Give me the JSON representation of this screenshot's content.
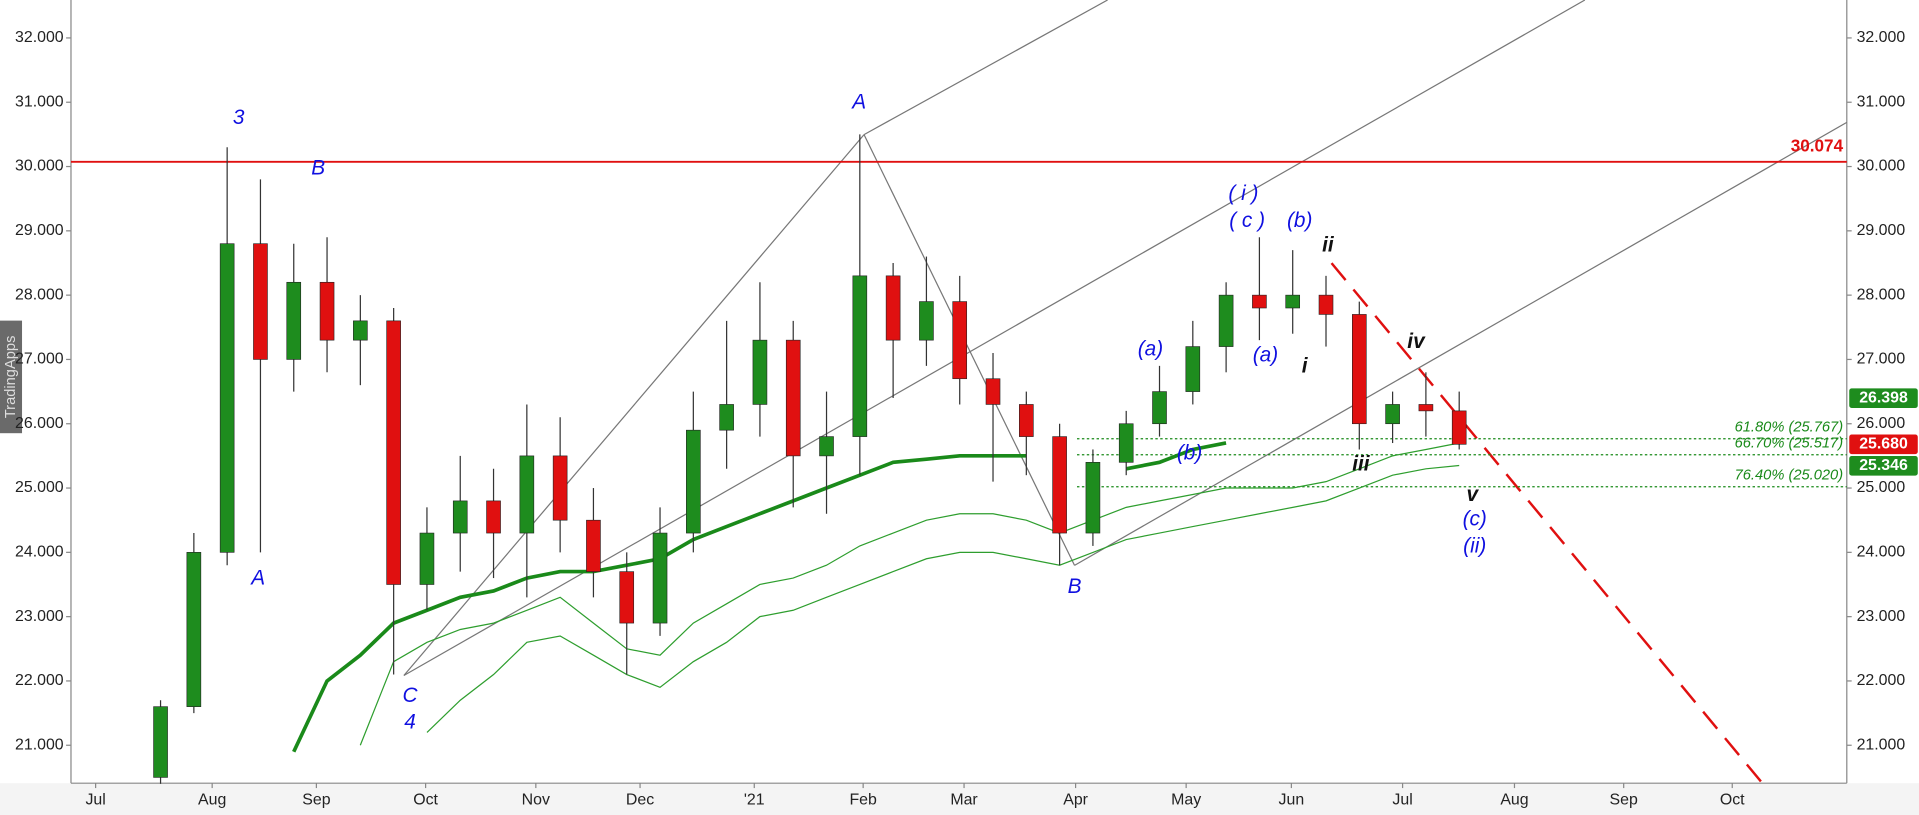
{
  "chart_data": {
    "type": "candlestick",
    "watermark": "TradingApps",
    "x": [
      0,
      1,
      2,
      3,
      4,
      5,
      6,
      7,
      8,
      9,
      10,
      11,
      12,
      13,
      14,
      15,
      16,
      17,
      18,
      19,
      20,
      21,
      22,
      23,
      24,
      25,
      26,
      27,
      28,
      29,
      30,
      31,
      32,
      33,
      34,
      35,
      36,
      37,
      38,
      39
    ],
    "open": [
      20500,
      21600,
      24000,
      28800,
      27000,
      28200,
      27300,
      27600,
      23500,
      24300,
      24800,
      24300,
      25500,
      24500,
      23700,
      22900,
      24300,
      25900,
      26300,
      27300,
      25500,
      25800,
      28300,
      27300,
      27900,
      26700,
      26300,
      25800,
      24300,
      25400,
      26000,
      26500,
      27200,
      28000,
      27800,
      28000,
      27700,
      26000,
      26300,
      26200
    ],
    "high": [
      21700,
      24300,
      30300,
      29800,
      28800,
      28900,
      28000,
      27800,
      24700,
      25500,
      25300,
      26300,
      26100,
      25000,
      24000,
      24700,
      26500,
      27600,
      28200,
      27600,
      26500,
      30500,
      28500,
      28600,
      28300,
      27100,
      26500,
      26000,
      25600,
      26200,
      26900,
      27600,
      28200,
      28900,
      28700,
      28300,
      27900,
      26500,
      26800,
      26500
    ],
    "low": [
      20400,
      21500,
      23800,
      24000,
      26500,
      26800,
      26600,
      22100,
      23100,
      23700,
      23600,
      23300,
      24000,
      23300,
      22100,
      22700,
      24000,
      25300,
      25800,
      24700,
      24600,
      25200,
      26400,
      26900,
      26300,
      25100,
      25200,
      23800,
      24100,
      25200,
      25800,
      26300,
      26800,
      27300,
      27400,
      27200,
      25600,
      25700,
      25800,
      25600
    ],
    "close": [
      21600,
      24000,
      28800,
      27000,
      28200,
      27300,
      27600,
      23500,
      24300,
      24800,
      24300,
      25500,
      24500,
      23700,
      22900,
      24300,
      25900,
      26300,
      27300,
      25500,
      25800,
      28300,
      27300,
      27900,
      26700,
      26300,
      25800,
      24300,
      25400,
      26000,
      26500,
      27200,
      28000,
      27800,
      28000,
      27700,
      26000,
      26300,
      26200,
      25680
    ],
    "up_color": "#1e8c1e",
    "down_color": "#e01010",
    "series": [
      {
        "color": "#1a8a1a",
        "width": 3,
        "values": [
          null,
          null,
          null,
          null,
          20900,
          22000,
          22400,
          22900,
          23100,
          23300,
          23400,
          23600,
          23700,
          23700,
          23800,
          23900,
          24200,
          24400,
          24600,
          24800,
          25000,
          25200,
          25400,
          25450,
          25500,
          25500,
          25500,
          null,
          null,
          25300,
          25400,
          25600,
          25700,
          null,
          null,
          null,
          null,
          null,
          null,
          null
        ]
      },
      {
        "color": "#2e9e2e",
        "width": 1,
        "values": [
          null,
          null,
          null,
          null,
          null,
          null,
          21000,
          22300,
          22600,
          22800,
          22900,
          23100,
          23300,
          22900,
          22500,
          22400,
          22900,
          23200,
          23500,
          23600,
          23800,
          24100,
          24300,
          24500,
          24600,
          24600,
          24500,
          24300,
          24500,
          24700,
          24800,
          24900,
          25000,
          25000,
          25000,
          25100,
          25300,
          25500,
          25600,
          25700
        ]
      },
      {
        "color": "#2e9e2e",
        "width": 1,
        "values": [
          null,
          null,
          null,
          null,
          null,
          null,
          null,
          null,
          21200,
          21700,
          22100,
          22600,
          22700,
          22400,
          22100,
          21900,
          22300,
          22600,
          23000,
          23100,
          23300,
          23500,
          23700,
          23900,
          24000,
          24000,
          23900,
          23800,
          24000,
          24200,
          24300,
          24400,
          24500,
          24600,
          24700,
          24800,
          25000,
          25200,
          25300,
          25350
        ]
      }
    ],
    "ylim": [
      20410,
      32590
    ],
    "xlim": [
      -2.69,
      50.64
    ],
    "yticks": [
      {
        "value": 21000,
        "label": "21.000"
      },
      {
        "value": 22000,
        "label": "22.000"
      },
      {
        "value": 23000,
        "label": "23.000"
      },
      {
        "value": 24000,
        "label": "24.000"
      },
      {
        "value": 25000,
        "label": "25.000"
      },
      {
        "value": 26000,
        "label": "26.000"
      },
      {
        "value": 27000,
        "label": "27.000"
      },
      {
        "value": 28000,
        "label": "28.000"
      },
      {
        "value": 29000,
        "label": "29.000"
      },
      {
        "value": 30000,
        "label": "30.000"
      },
      {
        "value": 31000,
        "label": "31.000"
      },
      {
        "value": 32000,
        "label": "32.000"
      }
    ],
    "xticks": [
      {
        "value": -1.95,
        "label": "Jul"
      },
      {
        "value": 1.55,
        "label": "Aug"
      },
      {
        "value": 4.68,
        "label": "Sep"
      },
      {
        "value": 7.96,
        "label": "Oct"
      },
      {
        "value": 11.27,
        "label": "Nov"
      },
      {
        "value": 14.4,
        "label": "Dec"
      },
      {
        "value": 17.83,
        "label": "'21"
      },
      {
        "value": 21.1,
        "label": "Feb"
      },
      {
        "value": 24.13,
        "label": "Mar"
      },
      {
        "value": 27.48,
        "label": "Apr"
      },
      {
        "value": 30.8,
        "label": "May"
      },
      {
        "value": 33.96,
        "label": "Jun"
      },
      {
        "value": 37.3,
        "label": "Jul"
      },
      {
        "value": 40.66,
        "label": "Aug"
      },
      {
        "value": 43.94,
        "label": "Sep"
      },
      {
        "value": 47.2,
        "label": "Oct"
      }
    ],
    "resistance": {
      "value": 30074,
      "label": "30.074",
      "color": "#e01010"
    },
    "fib_levels": [
      {
        "value": 25767,
        "label": "61.80% (25.767)"
      },
      {
        "value": 25517,
        "label": "66.70% (25.517)"
      },
      {
        "value": 25020,
        "label": "76.40% (25.020)"
      }
    ],
    "fib_color": "#1a8a1a",
    "price_badges": [
      {
        "value": 26398,
        "label": "26.398",
        "color": "#1e8c1e"
      },
      {
        "value": 25680,
        "label": "25.680",
        "color": "#e01010"
      },
      {
        "value": 25346,
        "label": "25.346",
        "color": "#1e8c1e"
      }
    ],
    "annotations": [
      {
        "text": "3",
        "color": "#1010e0"
      },
      {
        "text": "B",
        "color": "#1010e0"
      },
      {
        "text": "A",
        "color": "#1010e0"
      },
      {
        "text": "C",
        "color": "#1010e0"
      },
      {
        "text": "4",
        "color": "#1010e0"
      },
      {
        "text": "A",
        "color": "#1010e0"
      },
      {
        "text": "B",
        "color": "#1010e0"
      },
      {
        "text": "(a)",
        "color": "#1010e0"
      },
      {
        "text": "(b)",
        "color": "#1010e0"
      },
      {
        "text": "( i )",
        "color": "#1010e0"
      },
      {
        "text": "( c )",
        "color": "#1010e0"
      },
      {
        "text": "(b)",
        "color": "#1010e0"
      },
      {
        "text": "(a)",
        "color": "#1010e0"
      },
      {
        "text": "ii",
        "color": "#111111"
      },
      {
        "text": "i",
        "color": "#111111"
      },
      {
        "text": "iv",
        "color": "#111111"
      },
      {
        "text": "iii",
        "color": "#111111"
      },
      {
        "text": "v",
        "color": "#111111"
      },
      {
        "text": "(c)",
        "color": "#1010e0"
      },
      {
        "text": "(ii)",
        "color": "#1010e0"
      }
    ]
  }
}
